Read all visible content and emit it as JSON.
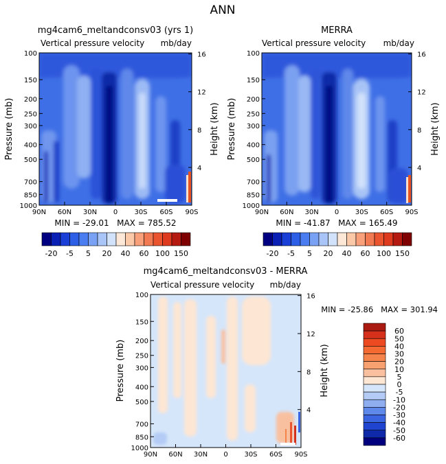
{
  "figure": {
    "title": "ANN"
  },
  "panels": [
    {
      "id": "model",
      "title": "mg4cam6_meltandconsv03 (yrs 1)",
      "subtitle_left": "Vertical pressure velocity",
      "subtitle_right": "mb/day",
      "stats": "MIN = -29.01   MAX = 785.52"
    },
    {
      "id": "obs",
      "title": "MERRA",
      "subtitle_left": "Vertical pressure velocity",
      "subtitle_right": "mb/day",
      "stats": "MIN = -41.87   MAX = 165.49"
    },
    {
      "id": "diff",
      "title": "mg4cam6_meltandconsv03 - MERRA",
      "subtitle_left": "Vertical pressure velocity",
      "subtitle_right": "mb/day",
      "stats": "MIN = -25.86   MAX = 301.94"
    }
  ],
  "axes": {
    "ylabel_left": "Pressure (mb)",
    "ylabel_right": "Height (km)",
    "pressure_ticks": [
      100,
      150,
      200,
      250,
      300,
      400,
      500,
      700,
      850,
      1000
    ],
    "height_ticks": [
      4,
      8,
      12,
      16
    ],
    "x_ticks": [
      "90N",
      "60N",
      "30N",
      "0",
      "30S",
      "60S",
      "90S"
    ]
  },
  "colorbars": {
    "top": {
      "labels": [
        "-20",
        "-5",
        "5",
        "20",
        "40",
        "60",
        "100",
        "150"
      ],
      "colors": [
        "#000080",
        "#0a1fb4",
        "#1a3fd6",
        "#2c5ee6",
        "#4a7ef0",
        "#7aa2f4",
        "#a9c4f6",
        "#d2e2fa",
        "#fde7d6",
        "#fbc8a8",
        "#f7a07a",
        "#f27a52",
        "#ea5530",
        "#dd3a1e",
        "#b51a10",
        "#7f0000"
      ]
    },
    "bottom": {
      "labels": [
        "60",
        "50",
        "40",
        "30",
        "20",
        "10",
        "5",
        "0",
        "-5",
        "-10",
        "-20",
        "-30",
        "-40",
        "-50",
        "-60"
      ],
      "colors": [
        "#aa1a10",
        "#d4301c",
        "#ee4a22",
        "#f46a32",
        "#f5844c",
        "#f7a070",
        "#f9c0a0",
        "#fde6d4",
        "#d6e6fa",
        "#b4ccf5",
        "#8eaef0",
        "#5e88ea",
        "#3a64e0",
        "#1f45d0",
        "#0f2aa8",
        "#00007f"
      ]
    }
  },
  "chart_data": [
    {
      "type": "heatmap",
      "title": "mg4cam6_meltandconsv03 (yrs 1)",
      "xlabel": "",
      "ylabel": "Pressure (mb)",
      "x": [
        "90N",
        "60N",
        "30N",
        "0",
        "30S",
        "60S",
        "90S"
      ],
      "y": [
        100,
        150,
        200,
        250,
        300,
        400,
        500,
        700,
        850,
        1000
      ],
      "min": -29.01,
      "max": 785.52,
      "units": "mb/day",
      "y_scale": "log"
    },
    {
      "type": "heatmap",
      "title": "MERRA",
      "xlabel": "",
      "ylabel": "Pressure (mb)",
      "x": [
        "90N",
        "60N",
        "30N",
        "0",
        "30S",
        "60S",
        "90S"
      ],
      "y": [
        100,
        150,
        200,
        250,
        300,
        400,
        500,
        700,
        850,
        1000
      ],
      "min": -41.87,
      "max": 165.49,
      "units": "mb/day",
      "y_scale": "log"
    },
    {
      "type": "heatmap",
      "title": "mg4cam6_meltandconsv03 - MERRA",
      "xlabel": "",
      "ylabel": "Pressure (mb)",
      "x": [
        "90N",
        "60N",
        "30N",
        "0",
        "30S",
        "60S",
        "90S"
      ],
      "y": [
        100,
        150,
        200,
        250,
        300,
        400,
        500,
        700,
        850,
        1000
      ],
      "min": -25.86,
      "max": 301.94,
      "units": "mb/day",
      "y_scale": "log"
    }
  ]
}
